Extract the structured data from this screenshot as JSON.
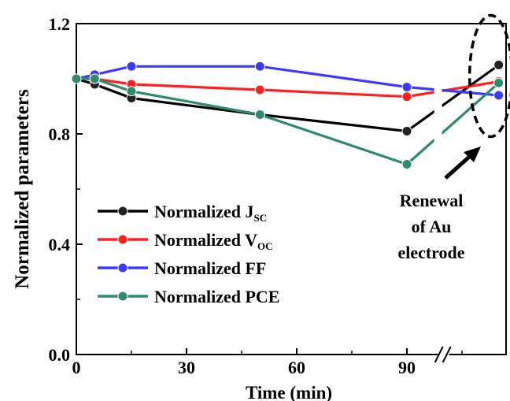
{
  "chart_data": {
    "type": "line",
    "title": "",
    "xlabel": "Time (min)",
    "ylabel": "Normalized parameters",
    "xlim": [
      0,
      117
    ],
    "ylim": [
      0,
      1.2
    ],
    "x_ticks": [
      0,
      30,
      60,
      90
    ],
    "x_tick_labels": [
      "0",
      "30",
      "60",
      "90"
    ],
    "y_ticks": [
      0.0,
      0.4,
      0.8,
      1.2
    ],
    "y_tick_labels": [
      "0.0",
      "0.4",
      "0.8",
      "1.2"
    ],
    "axis_break_marker": "//",
    "grid": false,
    "legend_position": "bottom-left",
    "series": [
      {
        "name": "Normalized J",
        "subscript": "SC",
        "color": "#000000",
        "marker_color": "#222222",
        "x": [
          0,
          5,
          15,
          50,
          90,
          115
        ],
        "y": [
          1.0,
          0.98,
          0.93,
          0.87,
          0.81,
          1.05
        ]
      },
      {
        "name": "Normalized V",
        "subscript": "OC",
        "color": "#ff2020",
        "marker_color": "#ff2020",
        "x": [
          0,
          5,
          15,
          50,
          90,
          115
        ],
        "y": [
          1.0,
          1.0,
          0.98,
          0.96,
          0.935,
          0.99
        ]
      },
      {
        "name": "Normalized FF",
        "subscript": "",
        "color": "#3b3bff",
        "marker_color": "#3b3bff",
        "x": [
          0,
          5,
          15,
          50,
          90,
          115
        ],
        "y": [
          1.0,
          1.015,
          1.045,
          1.045,
          0.97,
          0.94
        ]
      },
      {
        "name": "Normalized PCE",
        "subscript": "",
        "color": "#2e8b6e",
        "marker_color": "#2e8b6e",
        "x": [
          0,
          5,
          15,
          50,
          90,
          115
        ],
        "y": [
          1.0,
          1.0,
          0.955,
          0.87,
          0.69,
          0.985
        ]
      }
    ],
    "annotations": [
      {
        "text_lines": [
          "Renewal",
          "of Au",
          "electrode"
        ],
        "target_x": 115
      }
    ]
  }
}
